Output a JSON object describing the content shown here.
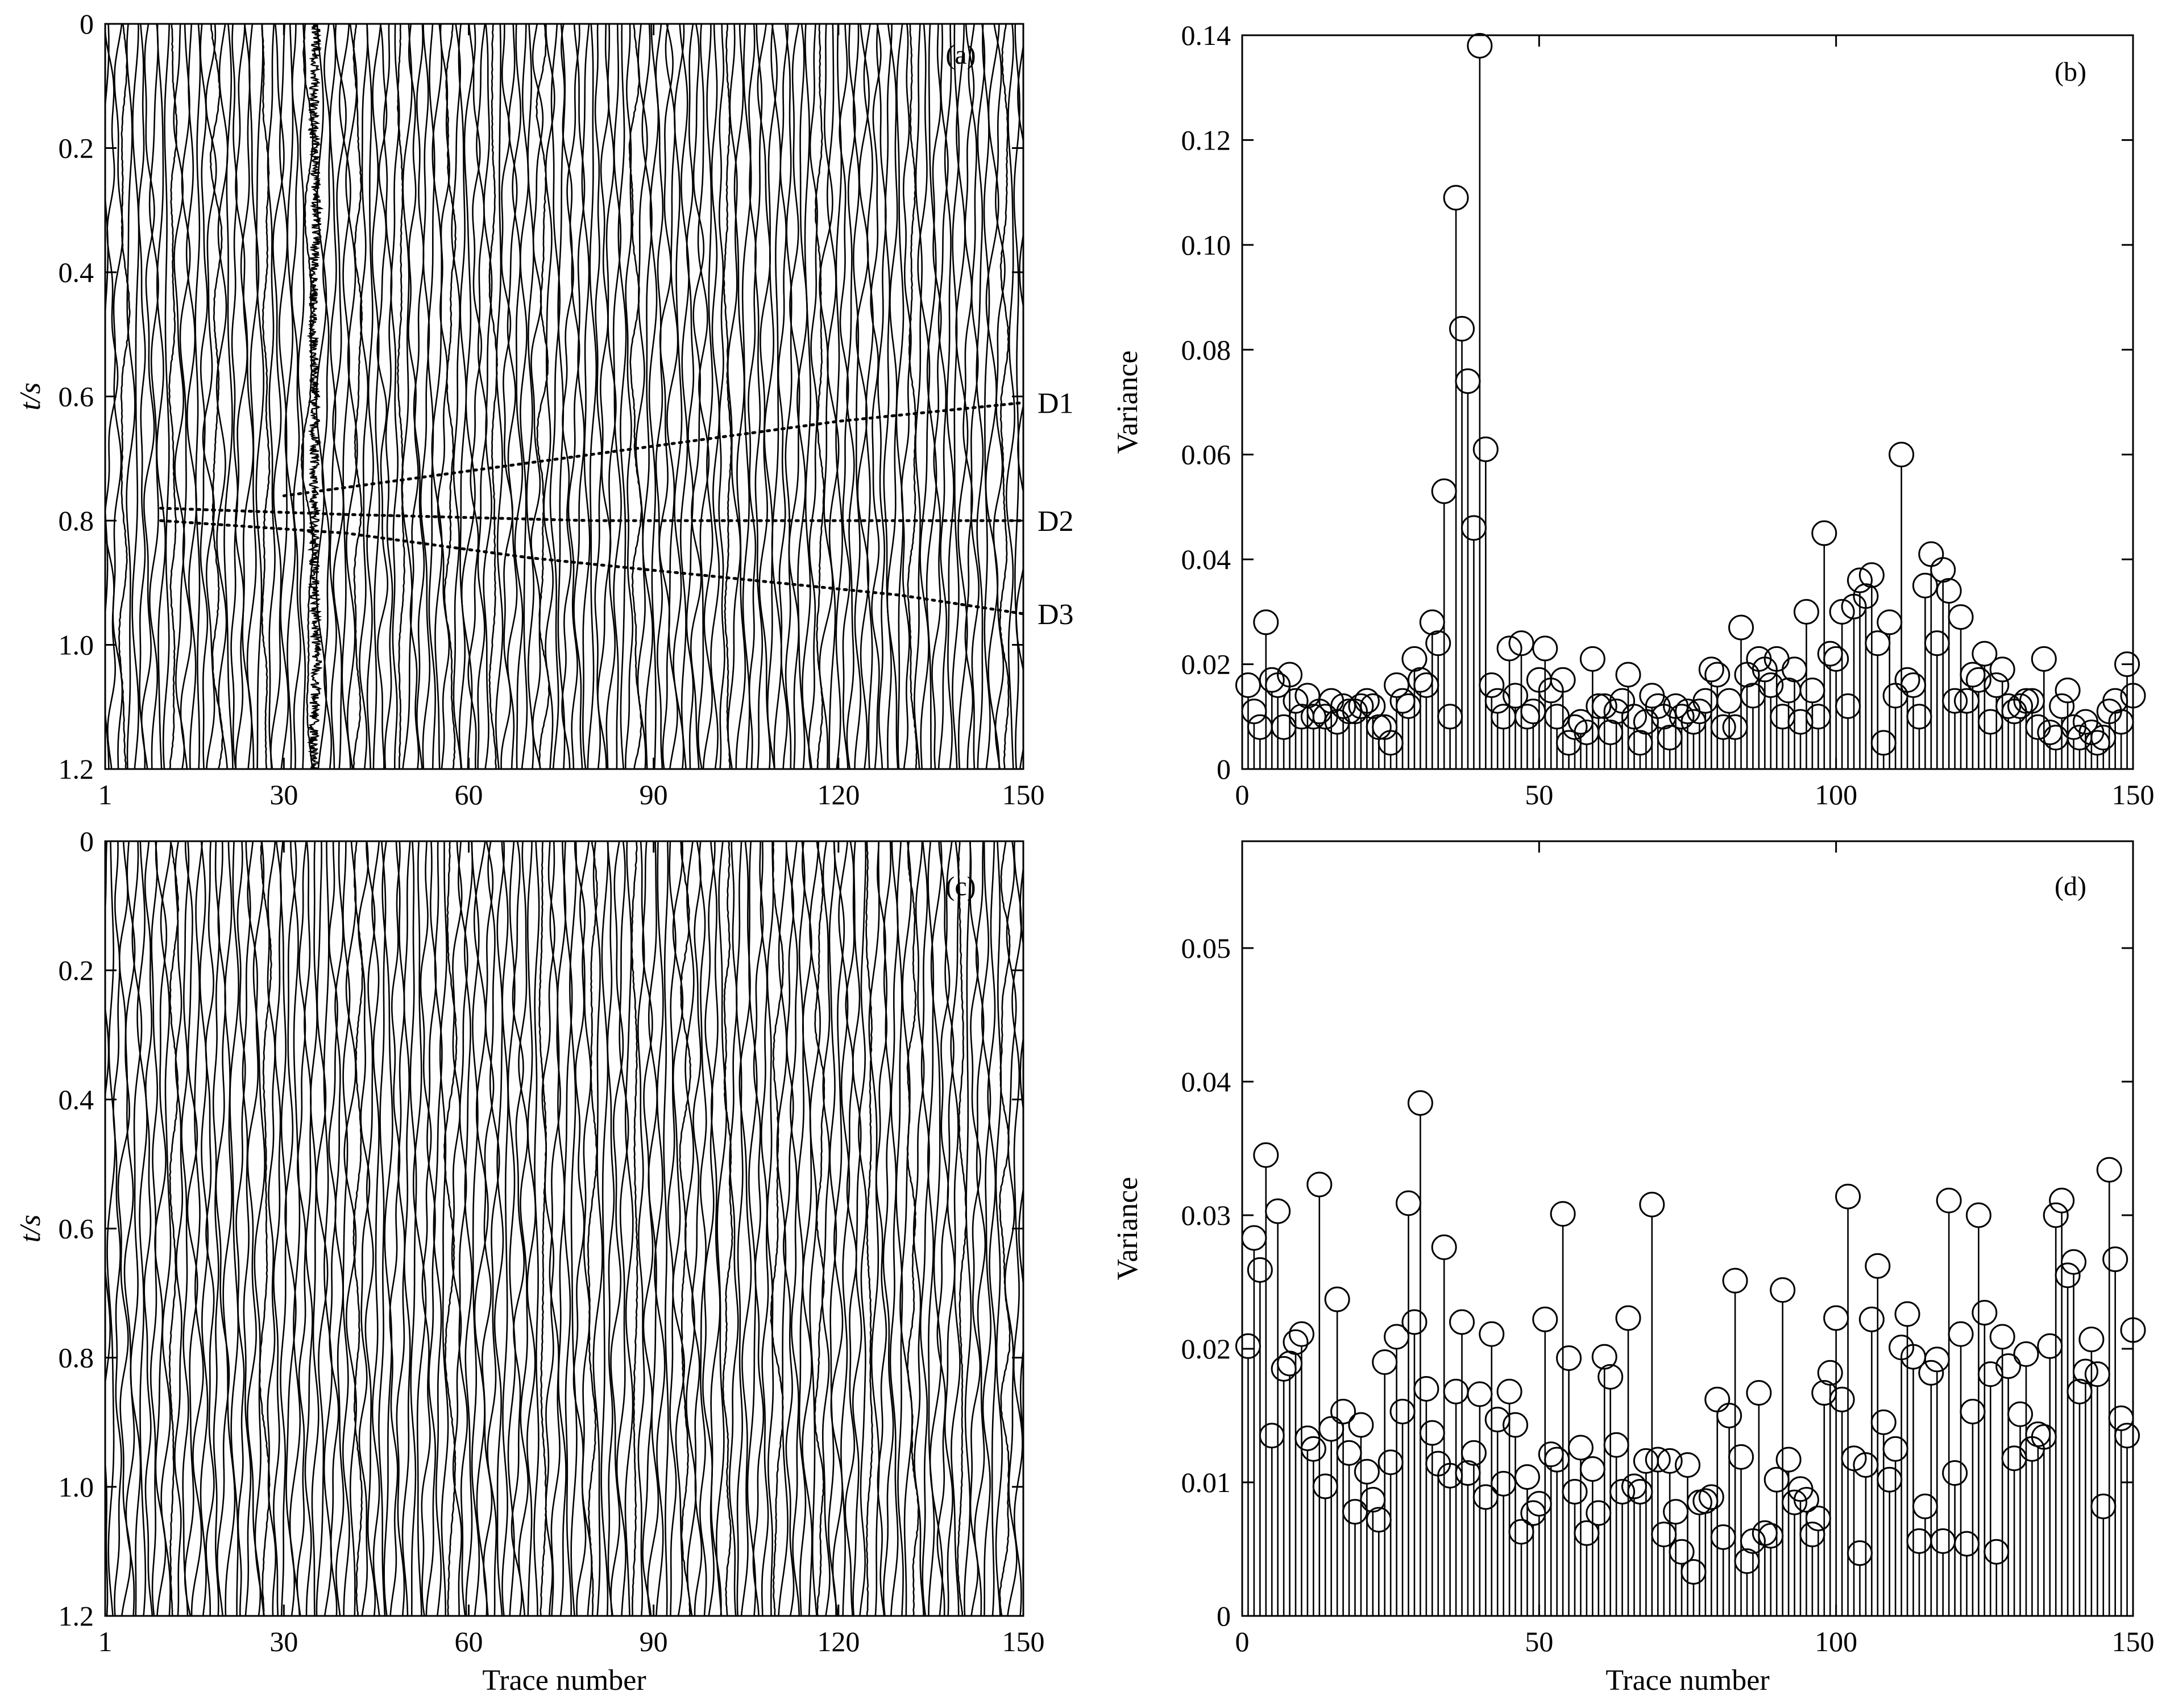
{
  "chart_data": [
    {
      "panel": "a",
      "type": "seismic-wiggle",
      "panel_label": "(a)",
      "xlabel": "",
      "ylabel": "t/s",
      "xlim": [
        1,
        150
      ],
      "ylim": [
        0,
        1.2
      ],
      "y_inverted": true,
      "xticks": [
        "1",
        "30",
        "60",
        "90",
        "120",
        "150"
      ],
      "xtick_values": [
        1,
        30,
        60,
        90,
        120,
        150
      ],
      "yticks": [
        "0",
        "0.2",
        "0.4",
        "0.6",
        "0.8",
        "1.0",
        "1.2"
      ],
      "ytick_values": [
        0,
        0.2,
        0.4,
        0.6,
        0.8,
        1.0,
        1.2
      ],
      "trace_count": 150,
      "noisy_trace": 35,
      "events": [
        {
          "label": "D1",
          "points": [
            [
              30,
              0.76
            ],
            [
              60,
              0.72
            ],
            [
              90,
              0.68
            ],
            [
              120,
              0.64
            ],
            [
              150,
              0.61
            ]
          ]
        },
        {
          "label": "D2",
          "points": [
            [
              10,
              0.78
            ],
            [
              40,
              0.79
            ],
            [
              80,
              0.8
            ],
            [
              120,
              0.8
            ],
            [
              150,
              0.8
            ]
          ]
        },
        {
          "label": "D3",
          "points": [
            [
              10,
              0.8
            ],
            [
              40,
              0.82
            ],
            [
              70,
              0.86
            ],
            [
              100,
              0.89
            ],
            [
              130,
              0.92
            ],
            [
              150,
              0.95
            ]
          ]
        }
      ]
    },
    {
      "panel": "b",
      "type": "stem",
      "panel_label": "(b)",
      "xlabel": "",
      "ylabel": "Variance",
      "xlim": [
        0,
        150
      ],
      "ylim": [
        0,
        0.14
      ],
      "xticks": [
        "0",
        "50",
        "100",
        "150"
      ],
      "xtick_values": [
        0,
        50,
        100,
        150
      ],
      "yticks": [
        "0",
        "0.02",
        "0.04",
        "0.06",
        "0.08",
        "0.10",
        "0.12",
        "0.14"
      ],
      "ytick_values": [
        0,
        0.02,
        0.04,
        0.06,
        0.08,
        0.1,
        0.12,
        0.14
      ],
      "x": [
        1,
        2,
        3,
        4,
        5,
        6,
        7,
        8,
        9,
        10,
        11,
        12,
        13,
        14,
        15,
        16,
        17,
        18,
        19,
        20,
        21,
        22,
        23,
        24,
        25,
        26,
        27,
        28,
        29,
        30,
        31,
        32,
        33,
        34,
        35,
        36,
        37,
        38,
        39,
        40,
        41,
        42,
        43,
        44,
        45,
        46,
        47,
        48,
        49,
        50,
        51,
        52,
        53,
        54,
        55,
        56,
        57,
        58,
        59,
        60,
        61,
        62,
        63,
        64,
        65,
        66,
        67,
        68,
        69,
        70,
        71,
        72,
        73,
        74,
        75,
        76,
        77,
        78,
        79,
        80,
        81,
        82,
        83,
        84,
        85,
        86,
        87,
        88,
        89,
        90,
        91,
        92,
        93,
        94,
        95,
        96,
        97,
        98,
        99,
        100,
        101,
        102,
        103,
        104,
        105,
        106,
        107,
        108,
        109,
        110,
        111,
        112,
        113,
        114,
        115,
        116,
        117,
        118,
        119,
        120,
        121,
        122,
        123,
        124,
        125,
        126,
        127,
        128,
        129,
        130,
        131,
        132,
        133,
        134,
        135,
        136,
        137,
        138,
        139,
        140,
        141,
        142,
        143,
        144,
        145,
        146,
        147,
        148,
        149,
        150
      ],
      "values": [
        0.016,
        0.011,
        0.008,
        0.028,
        0.017,
        0.016,
        0.008,
        0.018,
        0.013,
        0.01,
        0.014,
        0.01,
        0.011,
        0.01,
        0.013,
        0.009,
        0.012,
        0.011,
        0.011,
        0.012,
        0.013,
        0.012,
        0.008,
        0.008,
        0.005,
        0.016,
        0.013,
        0.012,
        0.021,
        0.017,
        0.016,
        0.028,
        0.024,
        0.053,
        0.01,
        0.109,
        0.084,
        0.074,
        0.046,
        0.138,
        0.061,
        0.016,
        0.013,
        0.01,
        0.023,
        0.014,
        0.024,
        0.01,
        0.011,
        0.017,
        0.023,
        0.015,
        0.01,
        0.017,
        0.005,
        0.008,
        0.009,
        0.007,
        0.021,
        0.012,
        0.012,
        0.007,
        0.011,
        0.013,
        0.018,
        0.01,
        0.005,
        0.009,
        0.014,
        0.012,
        0.01,
        0.006,
        0.012,
        0.01,
        0.011,
        0.009,
        0.011,
        0.013,
        0.019,
        0.018,
        0.008,
        0.013,
        0.008,
        0.027,
        0.018,
        0.014,
        0.021,
        0.019,
        0.016,
        0.021,
        0.01,
        0.015,
        0.019,
        0.009,
        0.03,
        0.015,
        0.01,
        0.045,
        0.022,
        0.021,
        0.03,
        0.012,
        0.031,
        0.036,
        0.033,
        0.037,
        0.024,
        0.005,
        0.028,
        0.014,
        0.06,
        0.017,
        0.016,
        0.01,
        0.035,
        0.041,
        0.024,
        0.038,
        0.034,
        0.013,
        0.029,
        0.013,
        0.018,
        0.017,
        0.022,
        0.009,
        0.016,
        0.019,
        0.012,
        0.011,
        0.012,
        0.013,
        0.013,
        0.008,
        0.021,
        0.007,
        0.006,
        0.012,
        0.015,
        0.008,
        0.006,
        0.009,
        0.007,
        0.005,
        0.006,
        0.011,
        0.013,
        0.009,
        0.02,
        0.014
      ]
    },
    {
      "panel": "c",
      "type": "seismic-wiggle",
      "panel_label": "(c)",
      "xlabel": "Trace number",
      "ylabel": "t/s",
      "xlim": [
        1,
        150
      ],
      "ylim": [
        0,
        1.2
      ],
      "y_inverted": true,
      "xticks": [
        "1",
        "30",
        "60",
        "90",
        "120",
        "150"
      ],
      "xtick_values": [
        1,
        30,
        60,
        90,
        120,
        150
      ],
      "yticks": [
        "0",
        "0.2",
        "0.4",
        "0.6",
        "0.8",
        "1.0",
        "1.2"
      ],
      "ytick_values": [
        0,
        0.2,
        0.4,
        0.6,
        0.8,
        1.0,
        1.2
      ],
      "trace_count": 150
    },
    {
      "panel": "d",
      "type": "stem",
      "panel_label": "(d)",
      "xlabel": "Trace number",
      "ylabel": "Variance",
      "xlim": [
        0,
        150
      ],
      "ylim": [
        0,
        0.058
      ],
      "xticks": [
        "0",
        "50",
        "100",
        "150"
      ],
      "xtick_values": [
        0,
        50,
        100,
        150
      ],
      "yticks": [
        "0",
        "0.01",
        "0.02",
        "0.03",
        "0.04",
        "0.05"
      ],
      "ytick_values": [
        0,
        0.01,
        0.02,
        0.03,
        0.04,
        0.05
      ],
      "x": [
        1,
        2,
        3,
        4,
        5,
        6,
        7,
        8,
        9,
        10,
        11,
        12,
        13,
        14,
        15,
        16,
        17,
        18,
        19,
        20,
        21,
        22,
        23,
        24,
        25,
        26,
        27,
        28,
        29,
        30,
        31,
        32,
        33,
        34,
        35,
        36,
        37,
        38,
        39,
        40,
        41,
        42,
        43,
        44,
        45,
        46,
        47,
        48,
        49,
        50,
        51,
        52,
        53,
        54,
        55,
        56,
        57,
        58,
        59,
        60,
        61,
        62,
        63,
        64,
        65,
        66,
        67,
        68,
        69,
        70,
        71,
        72,
        73,
        74,
        75,
        76,
        77,
        78,
        79,
        80,
        81,
        82,
        83,
        84,
        85,
        86,
        87,
        88,
        89,
        90,
        91,
        92,
        93,
        94,
        95,
        96,
        97,
        98,
        99,
        100,
        101,
        102,
        103,
        104,
        105,
        106,
        107,
        108,
        109,
        110,
        111,
        112,
        113,
        114,
        115,
        116,
        117,
        118,
        119,
        120,
        121,
        122,
        123,
        124,
        125,
        126,
        127,
        128,
        129,
        130,
        131,
        132,
        133,
        134,
        135,
        136,
        137,
        138,
        139,
        140,
        141,
        142,
        143,
        144,
        145,
        146,
        147,
        148,
        149,
        150
      ],
      "values": [
        0.0202,
        0.0283,
        0.0259,
        0.0345,
        0.0135,
        0.0303,
        0.0185,
        0.0189,
        0.0205,
        0.0211,
        0.0133,
        0.0125,
        0.0323,
        0.0097,
        0.014,
        0.0237,
        0.0153,
        0.0122,
        0.0078,
        0.0143,
        0.0108,
        0.0087,
        0.0072,
        0.019,
        0.0115,
        0.0209,
        0.0153,
        0.0309,
        0.022,
        0.0384,
        0.017,
        0.0137,
        0.0114,
        0.0276,
        0.0105,
        0.0168,
        0.022,
        0.0107,
        0.0122,
        0.0166,
        0.0089,
        0.0211,
        0.0147,
        0.0099,
        0.0168,
        0.0143,
        0.0063,
        0.0104,
        0.0077,
        0.0084,
        0.0222,
        0.0121,
        0.0117,
        0.0301,
        0.0193,
        0.0093,
        0.0126,
        0.0062,
        0.011,
        0.0077,
        0.0194,
        0.0179,
        0.0128,
        0.0093,
        0.0223,
        0.0097,
        0.0093,
        0.0116,
        0.0308,
        0.0117,
        0.0061,
        0.0116,
        0.0078,
        0.0048,
        0.0113,
        0.0033,
        0.0085,
        0.0086,
        0.0089,
        0.0162,
        0.0059,
        0.015,
        0.0251,
        0.0119,
        0.0041,
        0.0056,
        0.0167,
        0.0062,
        0.006,
        0.0102,
        0.0244,
        0.0117,
        0.0085,
        0.0095,
        0.0087,
        0.0061,
        0.0073,
        0.0167,
        0.0182,
        0.0223,
        0.0162,
        0.0314,
        0.0118,
        0.0047,
        0.0113,
        0.0222,
        0.0262,
        0.0145,
        0.0102,
        0.0125,
        0.0201,
        0.0226,
        0.0194,
        0.0056,
        0.0082,
        0.0182,
        0.0192,
        0.0056,
        0.0311,
        0.0107,
        0.0211,
        0.0054,
        0.0153,
        0.03,
        0.0227,
        0.0181,
        0.0048,
        0.0209,
        0.0187,
        0.0118,
        0.0151,
        0.0196,
        0.0125,
        0.0136,
        0.0134,
        0.0202,
        0.03,
        0.0311,
        0.0255,
        0.0265,
        0.0168,
        0.0183,
        0.0207,
        0.0181,
        0.0082,
        0.0334,
        0.0267,
        0.0148,
        0.0135,
        0.0214
      ]
    }
  ],
  "annotations": {
    "event_labels": [
      "D1",
      "D2",
      "D3"
    ]
  }
}
